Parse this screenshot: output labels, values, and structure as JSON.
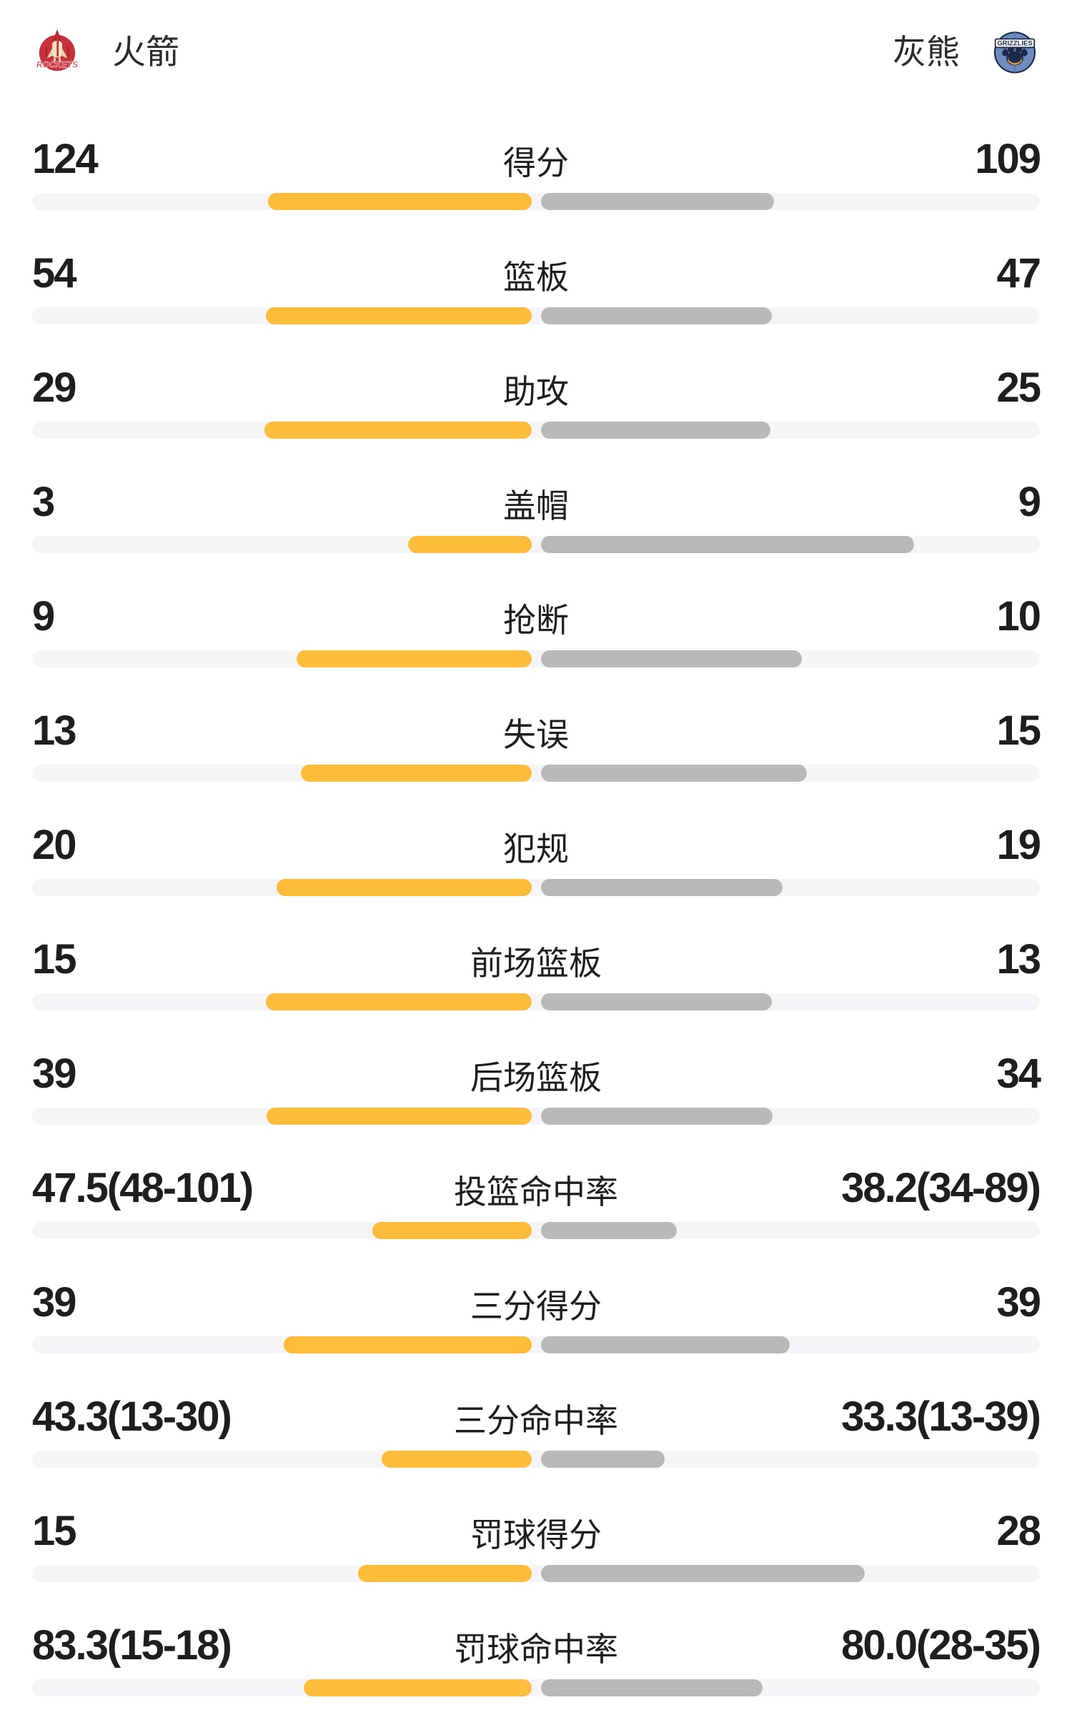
{
  "header": {
    "home": {
      "name": "火箭",
      "logo_label": "ROCKETS"
    },
    "away": {
      "name": "灰熊",
      "logo_label": "GRIZZLIES"
    }
  },
  "colors": {
    "home_bar": "#fbbd3b",
    "away_bar": "#b9b9b9",
    "track": "#f5f5f7",
    "text": "#1e1e1e",
    "rockets_red": "#c9313d",
    "rockets_cream": "#f2e4c2",
    "grizzlies_blue": "#6e8cbe",
    "grizzlies_navy": "#1b2a4a",
    "grizzlies_gold": "#e8a23c"
  },
  "chart_data": {
    "type": "bar",
    "orientation": "horizontal paired bars growing outward from center; left=home (yellow), right=away (gray)",
    "teams": [
      "火箭",
      "灰熊"
    ],
    "legend_position": "header",
    "rows": [
      {
        "label": "得分",
        "left_value": "124",
        "right_value": "109",
        "left_num": 124,
        "right_num": 109,
        "left_bar_pct": 26.2,
        "right_bar_pct": 23.1
      },
      {
        "label": "篮板",
        "left_value": "54",
        "right_value": "47",
        "left_num": 54,
        "right_num": 47,
        "left_bar_pct": 26.4,
        "right_bar_pct": 22.9
      },
      {
        "label": "助攻",
        "left_value": "29",
        "right_value": "25",
        "left_num": 29,
        "right_num": 25,
        "left_bar_pct": 26.5,
        "right_bar_pct": 22.8
      },
      {
        "label": "盖帽",
        "left_value": "3",
        "right_value": "9",
        "left_num": 3,
        "right_num": 9,
        "left_bar_pct": 12.3,
        "right_bar_pct": 37.0
      },
      {
        "label": "抢断",
        "left_value": "9",
        "right_value": "10",
        "left_num": 9,
        "right_num": 10,
        "left_bar_pct": 23.3,
        "right_bar_pct": 25.9
      },
      {
        "label": "失误",
        "left_value": "13",
        "right_value": "15",
        "left_num": 13,
        "right_num": 15,
        "left_bar_pct": 22.9,
        "right_bar_pct": 26.4
      },
      {
        "label": "犯规",
        "left_value": "20",
        "right_value": "19",
        "left_num": 20,
        "right_num": 19,
        "left_bar_pct": 25.3,
        "right_bar_pct": 24.0
      },
      {
        "label": "前场篮板",
        "left_value": "15",
        "right_value": "13",
        "left_num": 15,
        "right_num": 13,
        "left_bar_pct": 26.4,
        "right_bar_pct": 22.9
      },
      {
        "label": "后场篮板",
        "left_value": "39",
        "right_value": "34",
        "left_num": 39,
        "right_num": 34,
        "left_bar_pct": 26.3,
        "right_bar_pct": 23.0
      },
      {
        "label": "投篮命中率",
        "left_value": "47.5(48-101)",
        "right_value": "38.2(34-89)",
        "left_num": 47.5,
        "right_num": 38.2,
        "left_bar_pct": 15.8,
        "right_bar_pct": 13.5
      },
      {
        "label": "三分得分",
        "left_value": "39",
        "right_value": "39",
        "left_num": 39,
        "right_num": 39,
        "left_bar_pct": 24.6,
        "right_bar_pct": 24.7
      },
      {
        "label": "三分命中率",
        "left_value": "43.3(13-30)",
        "right_value": "33.3(13-39)",
        "left_num": 43.3,
        "right_num": 33.3,
        "left_bar_pct": 14.9,
        "right_bar_pct": 12.3
      },
      {
        "label": "罚球得分",
        "left_value": "15",
        "right_value": "28",
        "left_num": 15,
        "right_num": 28,
        "left_bar_pct": 17.2,
        "right_bar_pct": 32.1
      },
      {
        "label": "罚球命中率",
        "left_value": "83.3(15-18)",
        "right_value": "80.0(28-35)",
        "left_num": 83.3,
        "right_num": 80.0,
        "left_bar_pct": 22.6,
        "right_bar_pct": 22.0
      }
    ]
  }
}
